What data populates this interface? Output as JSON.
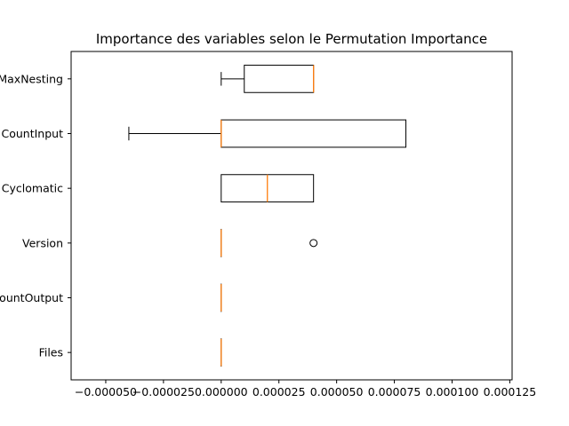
{
  "chart_data": {
    "type": "boxplot",
    "orientation": "horizontal",
    "title": "Importance des variables selon le Permutation Importance",
    "xlabel": "",
    "ylabel": "",
    "xlim": [
      -6.5e-05,
      0.000126
    ],
    "x_ticks": [
      {
        "value": -5e-05,
        "label": "−0.000050"
      },
      {
        "value": -2.5e-05,
        "label": "−0.000025"
      },
      {
        "value": 0.0,
        "label": "0.000000"
      },
      {
        "value": 2.5e-05,
        "label": "0.000025"
      },
      {
        "value": 5e-05,
        "label": "0.000050"
      },
      {
        "value": 7.5e-05,
        "label": "0.000075"
      },
      {
        "value": 0.0001,
        "label": "0.000100"
      },
      {
        "value": 0.000125,
        "label": "0.000125"
      }
    ],
    "categories": [
      {
        "label": "MaxNesting",
        "whisker_low": 0.0,
        "q1": 1e-05,
        "median": 4e-05,
        "q3": 4e-05,
        "whisker_high": 4e-05,
        "outliers": []
      },
      {
        "label": "CountInput",
        "whisker_low": -4e-05,
        "q1": 0.0,
        "median": 0.0,
        "q3": 8e-05,
        "whisker_high": 8e-05,
        "outliers": []
      },
      {
        "label": "Cyclomatic",
        "whisker_low": 0.0,
        "q1": 0.0,
        "median": 2e-05,
        "q3": 4e-05,
        "whisker_high": 4e-05,
        "outliers": []
      },
      {
        "label": "Version",
        "whisker_low": 0.0,
        "q1": 0.0,
        "median": 0.0,
        "q3": 0.0,
        "whisker_high": 0.0,
        "outliers": [
          4e-05
        ]
      },
      {
        "label": "CountOutput",
        "whisker_low": 0.0,
        "q1": 0.0,
        "median": 0.0,
        "q3": 0.0,
        "whisker_high": 0.0,
        "outliers": []
      },
      {
        "label": "Files",
        "whisker_low": 0.0,
        "q1": 0.0,
        "median": 0.0,
        "q3": 0.0,
        "whisker_high": 0.0,
        "outliers": []
      }
    ],
    "colors": {
      "box": "#000000",
      "median": "#ff7f0e",
      "outlier": "#000000"
    },
    "grid": false,
    "legend": "none"
  }
}
